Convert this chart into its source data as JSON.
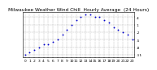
{
  "title": "Milwaukee Weather Wind Chill  Hourly Average  (24 Hours)",
  "title_fontsize": 4.2,
  "hours": [
    0,
    1,
    2,
    3,
    4,
    5,
    6,
    7,
    8,
    9,
    10,
    11,
    12,
    13,
    14,
    15,
    16,
    17,
    18,
    19,
    20,
    21,
    22,
    23
  ],
  "wind_chill": [
    -11,
    -10,
    -9,
    -8,
    -7,
    -7,
    -6,
    -5,
    -3,
    -1,
    1,
    3,
    4,
    5,
    5,
    4,
    4,
    3,
    2,
    0,
    -1,
    -2,
    -3,
    -5
  ],
  "dot_color": "#0000cc",
  "bg_color": "#ffffff",
  "ylim": [
    -12,
    6
  ],
  "yticks": [
    -11,
    -8,
    -5,
    -2,
    1,
    4
  ],
  "xtick_labels_top": [
    "0",
    "1",
    "2",
    "3",
    "4",
    "5",
    "6",
    "7",
    "8",
    "9",
    "10",
    "11",
    "12",
    "13",
    "14",
    "15",
    "16",
    "17",
    "18",
    "19",
    "20",
    "21",
    "22",
    "23"
  ],
  "xtick_labels_bot": [
    "5",
    "5",
    "5",
    "5",
    "5",
    "5",
    "5",
    "5",
    "5",
    "5",
    "5",
    "5",
    "5",
    "5",
    "5",
    "5",
    "5",
    "5",
    "5",
    "5",
    "5",
    "5",
    "5",
    "5"
  ],
  "grid_color": "#aaaaaa",
  "tick_fontsize": 3.2,
  "dot_size": 1.8
}
